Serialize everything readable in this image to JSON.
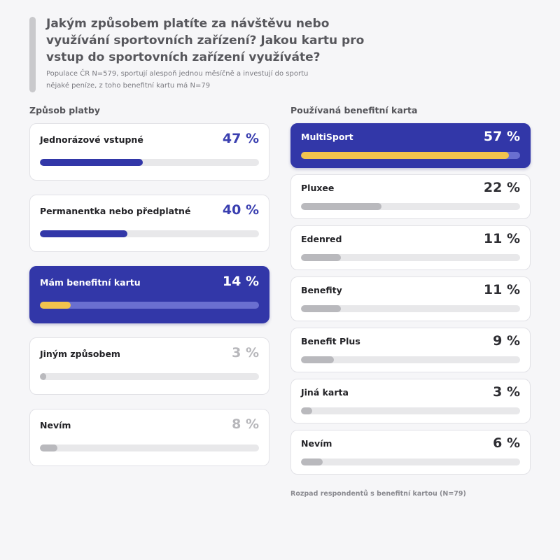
{
  "header": {
    "title": "Jakým způsobem platíte za návštěvu nebo využívání sportovních zařízení? Jakou kartu pro vstup do sportovních zařízení využíváte?",
    "subtitle": "Populace ČR N=579, sportují alespoň jednou měsíčně a investují do sportu nějaké peníze, z toho benefitní kartu má N=79"
  },
  "colors": {
    "primary": "#3237a8",
    "highlight_fill": "#f2c34d",
    "muted_fill": "#b9b9bd",
    "track": "#e8e8ea"
  },
  "chart_data": [
    {
      "type": "bar",
      "title": "Způsob platby",
      "unit": "%",
      "categories": [
        "Jednorázové vstupné",
        "Permanentka nebo předplatné",
        "Mám benefitní kartu",
        "Jiným způsobem",
        "Nevím"
      ],
      "values": [
        47,
        40,
        14,
        3,
        8
      ],
      "value_labels": [
        "47 %",
        "40 %",
        "14 %",
        "3 %",
        "8 %"
      ],
      "highlighted": "Mám benefitní kartu",
      "xlim": [
        0,
        100
      ]
    },
    {
      "type": "bar",
      "title": "Používaná benefitní karta",
      "unit": "%",
      "categories": [
        "MultiSport",
        "Pluxee",
        "Edenred",
        "Benefity",
        "Benefit Plus",
        "Jiná karta",
        "Nevím"
      ],
      "values": [
        57,
        22,
        11,
        11,
        9,
        3,
        6
      ],
      "value_labels": [
        "57 %",
        "22 %",
        "11 %",
        "11 %",
        "9 %",
        "3 %",
        "6 %"
      ],
      "highlighted": "MultiSport",
      "xlim": [
        0,
        60
      ],
      "footnote": "Rozpad respondentů s benefitní kartou (N=79)"
    }
  ]
}
